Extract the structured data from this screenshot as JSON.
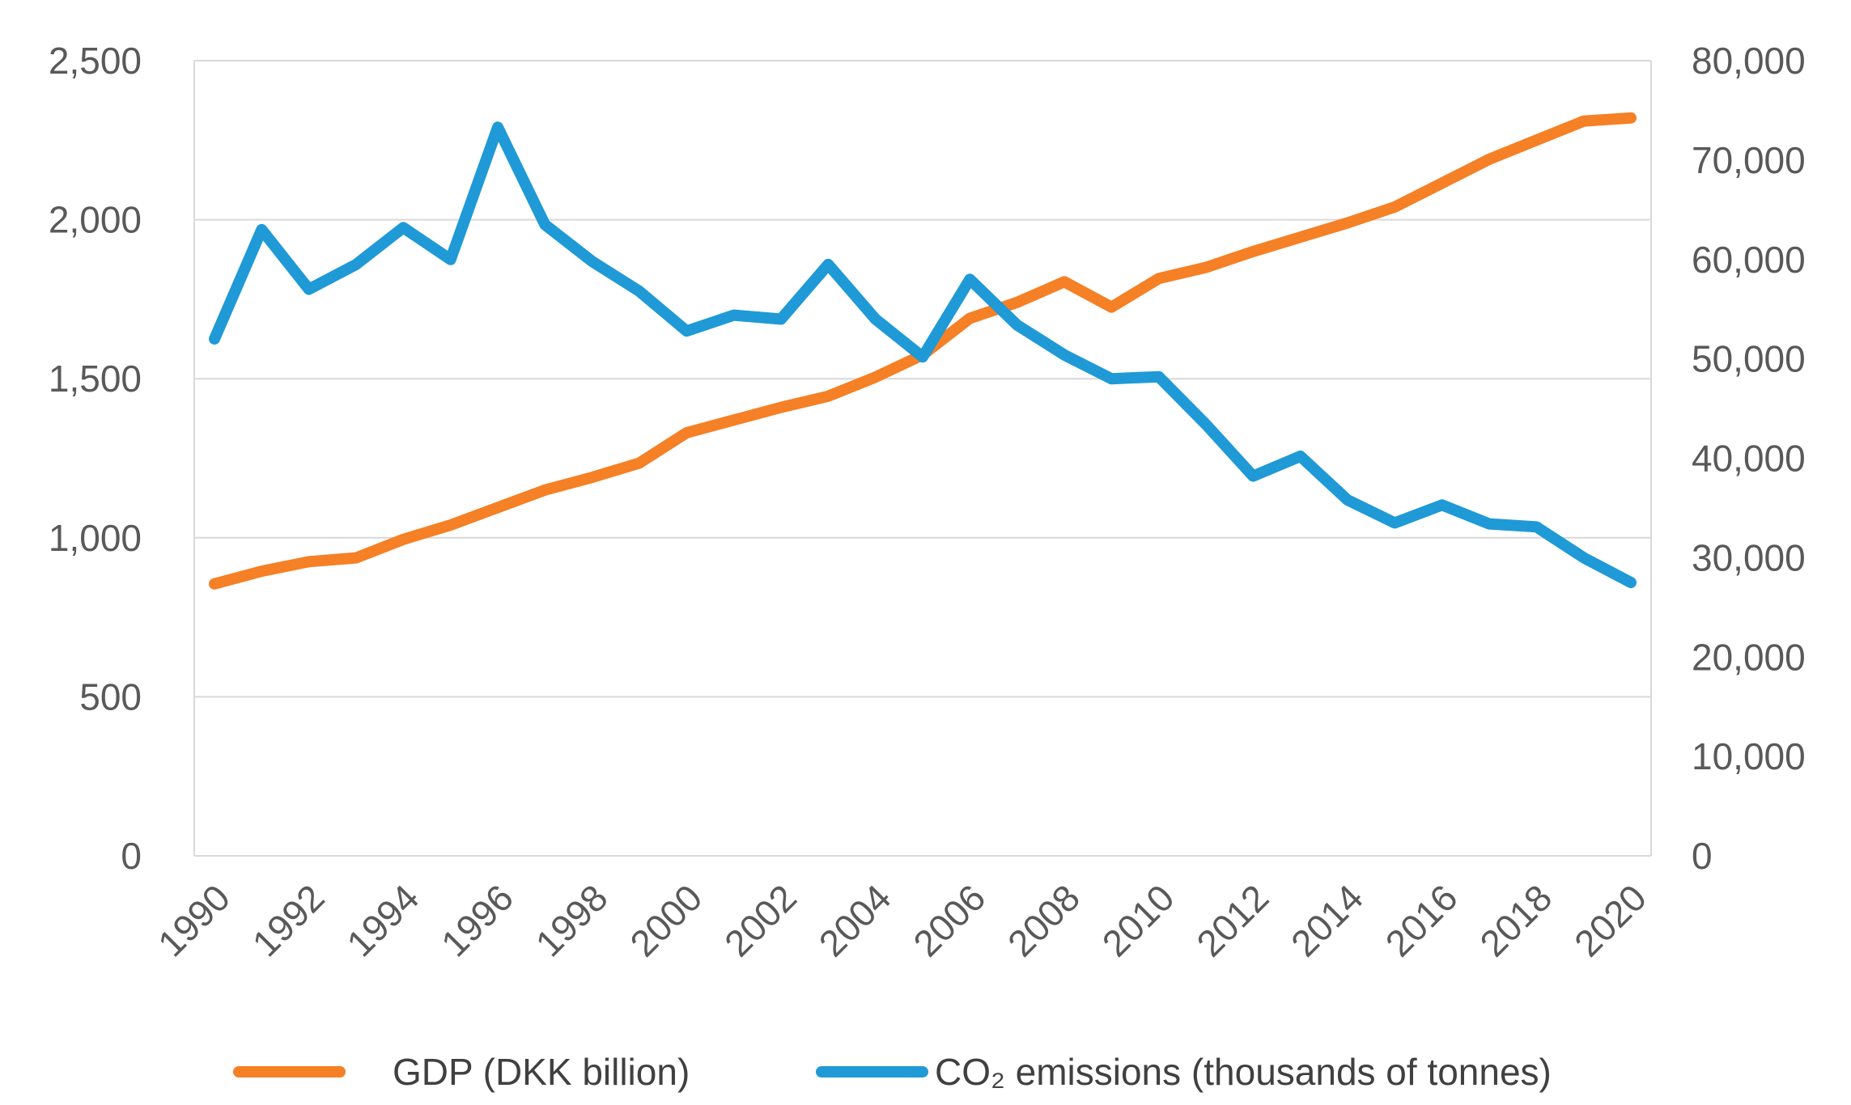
{
  "chart_data": {
    "type": "line",
    "title": "",
    "x": [
      1990,
      1991,
      1992,
      1993,
      1994,
      1995,
      1996,
      1997,
      1998,
      1999,
      2000,
      2001,
      2002,
      2003,
      2004,
      2005,
      2006,
      2007,
      2008,
      2009,
      2010,
      2011,
      2012,
      2013,
      2014,
      2015,
      2016,
      2017,
      2018,
      2019,
      2020
    ],
    "x_tick_labels": [
      "1990",
      "1992",
      "1994",
      "1996",
      "1998",
      "2000",
      "2002",
      "2004",
      "2006",
      "2008",
      "2010",
      "2012",
      "2014",
      "2016",
      "2018",
      "2020"
    ],
    "left_axis": {
      "ylim": [
        0,
        2500
      ],
      "tick_labels": [
        "0",
        "500",
        "1,000",
        "1,500",
        "2,000",
        "2,500"
      ]
    },
    "right_axis": {
      "ylim": [
        0,
        80000
      ],
      "tick_labels": [
        "0",
        "10,000",
        "20,000",
        "30,000",
        "40,000",
        "50,000",
        "60,000",
        "70,000",
        "80,000"
      ]
    },
    "grid": true,
    "series": [
      {
        "name": "GDP (DKK billion)",
        "axis": "left",
        "color": "#F58025",
        "values": [
          855,
          895,
          925,
          937,
          995,
          1040,
          1095,
          1150,
          1190,
          1235,
          1330,
          1370,
          1410,
          1445,
          1505,
          1575,
          1690,
          1740,
          1805,
          1725,
          1815,
          1850,
          1900,
          1945,
          1990,
          2040,
          2115,
          2190,
          2250,
          2310,
          2320
        ]
      },
      {
        "name": "CO₂  emissions (thousands of tonnes)",
        "axis": "right",
        "color": "#1F9AD6",
        "values": [
          52000,
          63000,
          57000,
          59500,
          63200,
          60000,
          73300,
          63500,
          59800,
          56800,
          52800,
          54400,
          54000,
          59500,
          54000,
          50200,
          58000,
          53400,
          50400,
          48000,
          48200,
          43400,
          38200,
          40200,
          35800,
          33500,
          35300,
          33400,
          33100,
          30000,
          27500
        ]
      }
    ],
    "legend": "bottom"
  }
}
